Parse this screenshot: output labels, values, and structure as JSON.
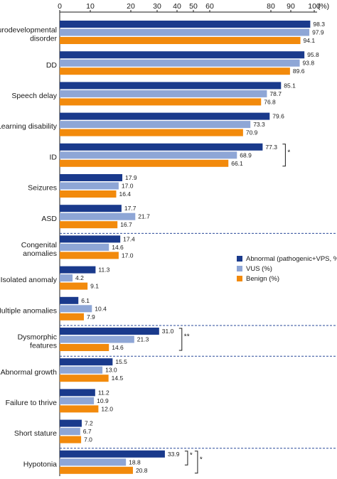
{
  "chart_data": {
    "type": "bar",
    "orientation": "horizontal",
    "x_ticks": [
      "0",
      "10",
      "20",
      "30",
      "40",
      "50",
      "60",
      "80",
      "90",
      "100"
    ],
    "x_unit": "(%)",
    "categories": [
      {
        "label": [
          "Neurodevelopmental",
          "disorder"
        ],
        "group_line_after": false
      },
      {
        "label": [
          "DD"
        ],
        "group_line_after": false
      },
      {
        "label": [
          "Speech delay"
        ],
        "group_line_after": false
      },
      {
        "label": [
          "Learning disability"
        ],
        "group_line_after": false
      },
      {
        "label": [
          "ID"
        ],
        "group_line_after": false
      },
      {
        "label": [
          "Seizures"
        ],
        "group_line_after": false
      },
      {
        "label": [
          "ASD"
        ],
        "group_line_after": true
      },
      {
        "label": [
          "Congenital",
          "anomalies"
        ],
        "group_line_after": false
      },
      {
        "label": [
          "Isolated anomaly"
        ],
        "group_line_after": false
      },
      {
        "label": [
          "Multiple anomalies"
        ],
        "group_line_after": true
      },
      {
        "label": [
          "Dysmorphic",
          "features"
        ],
        "group_line_after": true
      },
      {
        "label": [
          "Abnormal growth"
        ],
        "group_line_after": false
      },
      {
        "label": [
          "Failure to thrive"
        ],
        "group_line_after": false
      },
      {
        "label": [
          "Short stature"
        ],
        "group_line_after": true
      },
      {
        "label": [
          "Hypotonia"
        ],
        "group_line_after": false
      }
    ],
    "series": [
      {
        "name": "Abnormal (pathogenic+VPS, %)",
        "color": "#1a3a8c",
        "values": [
          98.3,
          95.8,
          85.1,
          79.6,
          77.3,
          17.9,
          17.7,
          17.4,
          11.3,
          6.1,
          31.0,
          15.5,
          11.2,
          7.2,
          33.9
        ],
        "labels": [
          "98.3",
          "95.8",
          "85.1",
          "79.6",
          "77.3",
          "17.9",
          "17.7",
          "17.4",
          "11.3",
          "6.1",
          "31.0",
          "15.5",
          "11.2",
          "7.2",
          "33.9"
        ]
      },
      {
        "name": "VUS (%)",
        "color": "#8ea6d6",
        "values": [
          97.9,
          93.8,
          78.7,
          73.3,
          68.9,
          17.0,
          21.7,
          14.6,
          4.2,
          10.4,
          21.3,
          13.0,
          10.9,
          6.7,
          18.8
        ],
        "labels": [
          "97.9",
          "93.8",
          "78.7",
          "73.3",
          "68.9",
          "17.0",
          "21.7",
          "14.6",
          "4.2",
          "10.4",
          "21.3",
          "13.0",
          "10.9",
          "6.7",
          "18.8"
        ]
      },
      {
        "name": "Benign (%)",
        "color": "#f28a0c",
        "values": [
          94.1,
          89.6,
          76.8,
          70.9,
          66.1,
          16.4,
          16.7,
          17.0,
          9.1,
          7.9,
          14.6,
          14.5,
          12.0,
          7.0,
          20.8
        ],
        "labels": [
          "94.1",
          "89.6",
          "76.8",
          "70.9",
          "66.1",
          "16.4",
          "16.7",
          "17.0",
          "9.1",
          "7.9",
          "14.6",
          "14.5",
          "12.0",
          "7.0",
          "20.8"
        ]
      }
    ],
    "significance": [
      {
        "category_index": 4,
        "marker": "*",
        "span": "all"
      },
      {
        "category_index": 10,
        "marker": "**",
        "span": "all"
      },
      {
        "category_index": 14,
        "marker": "*",
        "span": "first-two"
      },
      {
        "category_index": 14,
        "marker": "*",
        "span": "all"
      }
    ],
    "legend_position": "right-middle",
    "grid": false
  }
}
